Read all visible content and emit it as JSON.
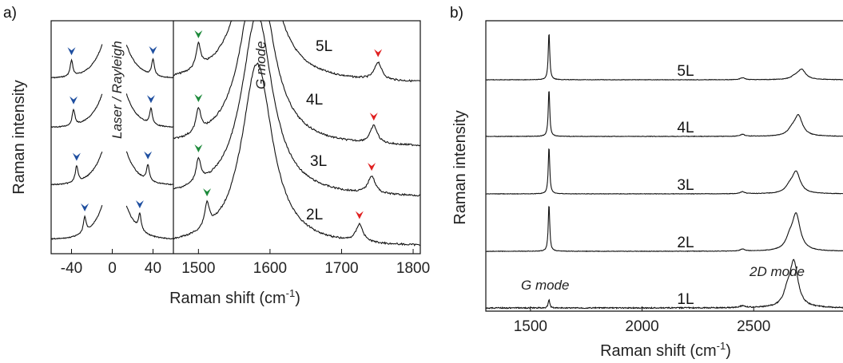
{
  "chart_data": [
    {
      "panel": "a)",
      "type": "line",
      "xlabel_main": "Raman shift (cm",
      "xlabel_sup": "-1",
      "xlabel_end": ")",
      "ylabel": "Raman intensity",
      "segments": [
        {
          "xlim": [
            -60,
            60
          ],
          "ticks": [
            "-40",
            "0",
            "40"
          ],
          "tick_values": [
            -40,
            0,
            40
          ]
        },
        {
          "xlim": [
            1465,
            1810
          ],
          "ticks": [
            "1500",
            "1600",
            "1700",
            "1800"
          ],
          "tick_values": [
            1500,
            1600,
            1700,
            1800
          ]
        }
      ],
      "series": [
        {
          "name": "5L",
          "low_peaks": [
            -40,
            40
          ],
          "g_peak": 1500,
          "red_peak": 1751
        },
        {
          "name": "4L",
          "low_peaks": [
            -38,
            38
          ],
          "g_peak": 1500,
          "red_peak": 1745
        },
        {
          "name": "3L",
          "low_peaks": [
            -35,
            35
          ],
          "g_peak": 1500,
          "red_peak": 1742
        },
        {
          "name": "2L",
          "low_peaks": [
            -27,
            27
          ],
          "g_peak": 1512,
          "red_peak": 1725
        }
      ],
      "annotations": [
        "Laser / Rayleigh",
        "G mode"
      ],
      "marker_colors": {
        "low_frequency": "#1f4fa0",
        "g_side": "#1d8a3b",
        "overtone": "#e02020"
      }
    },
    {
      "panel": "b)",
      "type": "line",
      "xlabel_main": "Raman shift (cm",
      "xlabel_sup": "-1",
      "xlabel_end": ")",
      "ylabel": "Raman intensity",
      "xlim": [
        1300,
        2900
      ],
      "ticks": [
        "1500",
        "2000",
        "2500"
      ],
      "tick_values": [
        1500,
        2000,
        2500
      ],
      "series": [
        {
          "name": "5L",
          "g_height": 0.85,
          "d2_height": 0.22,
          "d2_pos": 2715
        },
        {
          "name": "4L",
          "g_height": 0.85,
          "d2_height": 0.45,
          "d2_pos": 2700
        },
        {
          "name": "3L",
          "g_height": 0.85,
          "d2_height": 0.48,
          "d2_pos": 2690
        },
        {
          "name": "2L",
          "g_height": 0.85,
          "d2_height": 0.8,
          "d2_pos": 2690
        },
        {
          "name": "1L",
          "g_height": 0.15,
          "d2_height": 1.0,
          "d2_pos": 2680
        }
      ],
      "annotations": [
        "G mode",
        "2D mode"
      ]
    }
  ]
}
